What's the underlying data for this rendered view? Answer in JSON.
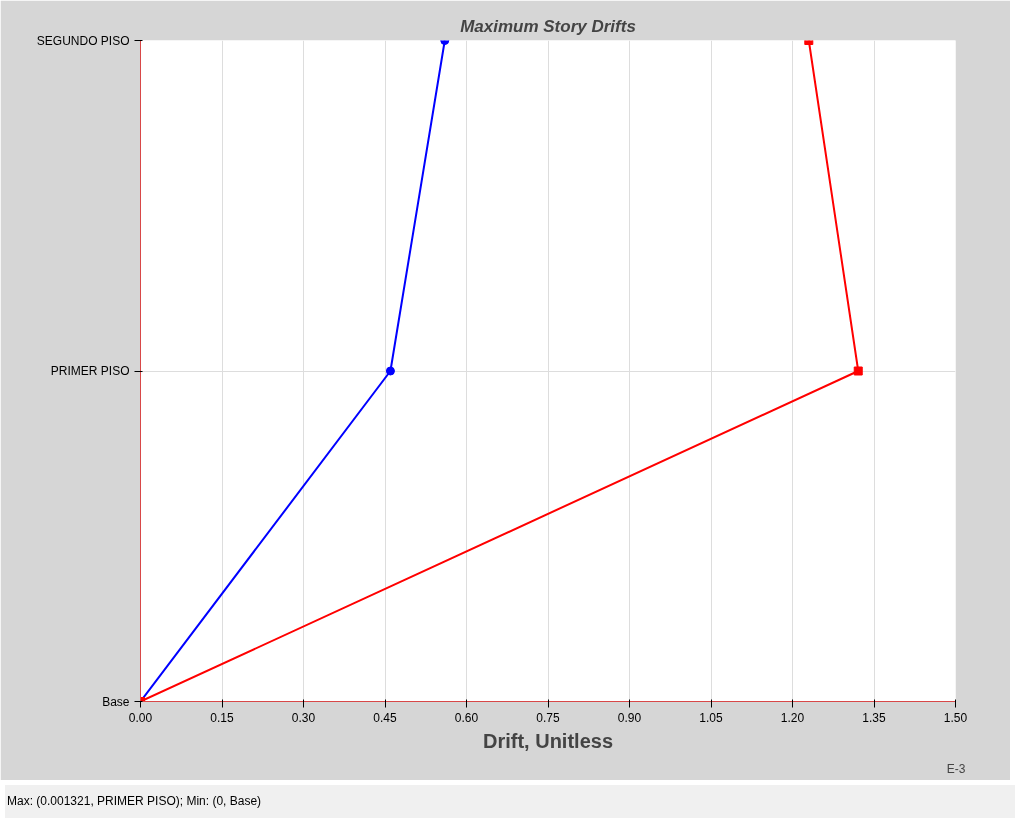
{
  "chart_data": {
    "type": "line",
    "orientation": "horizontal",
    "title": "Maximum Story Drifts",
    "xlabel": "Drift, Unitless",
    "categories": [
      "SEGUNDO PISO",
      "PRIMER PISO",
      "Base"
    ],
    "series": [
      {
        "color": "#0000ff",
        "marker": "circle",
        "values": [
          0.56,
          0.46,
          0
        ]
      },
      {
        "color": "#ff0000",
        "marker": "square",
        "values": [
          1.23,
          1.321,
          0
        ]
      }
    ],
    "xlim": [
      0,
      1.5
    ],
    "xticks": [
      {
        "value": 0,
        "label": "0.00"
      },
      {
        "value": 0.15,
        "label": "0.15"
      },
      {
        "value": 0.3,
        "label": "0.30"
      },
      {
        "value": 0.45,
        "label": "0.45"
      },
      {
        "value": 0.6,
        "label": "0.60"
      },
      {
        "value": 0.75,
        "label": "0.75"
      },
      {
        "value": 0.9,
        "label": "0.90"
      },
      {
        "value": 1.05,
        "label": "1.05"
      },
      {
        "value": 1.2,
        "label": "1.20"
      },
      {
        "value": 1.35,
        "label": "1.35"
      },
      {
        "value": 1.5,
        "label": "1.50"
      }
    ],
    "grid": true,
    "line_style": "solid",
    "annotations": [
      "E-3",
      "Max: (0.001321, PRIMER PISO);   Min: (0, Base)"
    ]
  }
}
